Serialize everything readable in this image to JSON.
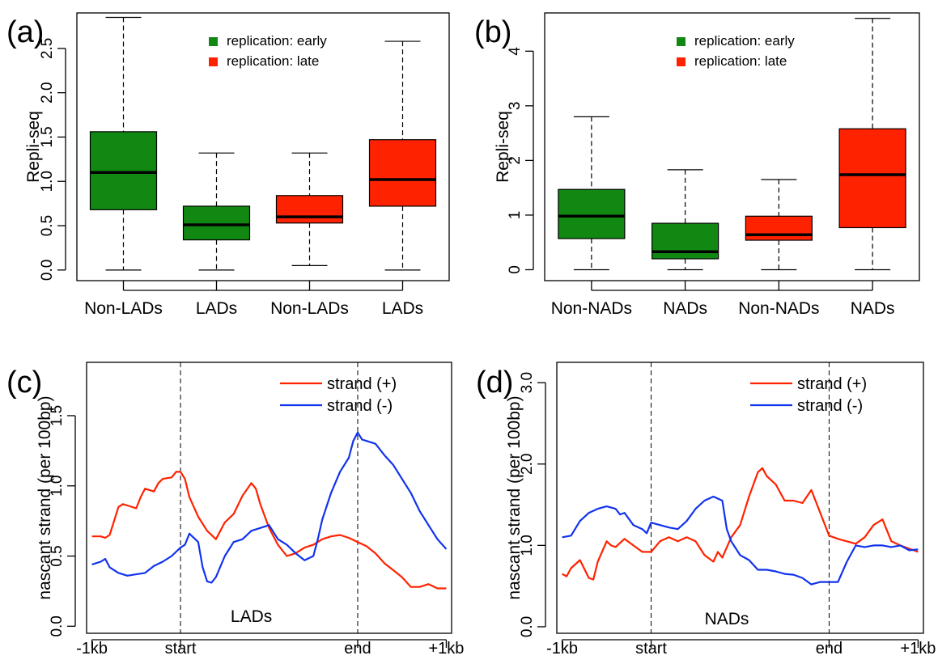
{
  "chart_data": [
    {
      "panel_label": "(a)",
      "type": "box",
      "ylabel": "Repli-seq",
      "ylim": [
        -0.12,
        2.9
      ],
      "yticks": [
        "0.0",
        "0.5",
        "1.0",
        "1.5",
        "2.0",
        "2.5"
      ],
      "ytick_values": [
        0,
        0.5,
        1.0,
        1.5,
        2.0,
        2.5
      ],
      "categories": [
        "Non-LADs",
        "LADs",
        "Non-LADs",
        "LADs"
      ],
      "legend": [
        {
          "label": "replication: early",
          "color": "#118811"
        },
        {
          "label": "replication: late",
          "color": "#ff2200"
        }
      ],
      "boxes": [
        {
          "min": 0.0,
          "q1": 0.68,
          "median": 1.1,
          "q3": 1.56,
          "max": 2.85,
          "color": "#118811"
        },
        {
          "min": 0.0,
          "q1": 0.34,
          "median": 0.51,
          "q3": 0.72,
          "max": 1.32,
          "color": "#118811"
        },
        {
          "min": 0.05,
          "q1": 0.53,
          "median": 0.6,
          "q3": 0.84,
          "max": 1.32,
          "color": "#ff2200"
        },
        {
          "min": 0.0,
          "q1": 0.72,
          "median": 1.02,
          "q3": 1.47,
          "max": 2.58,
          "color": "#ff2200"
        }
      ]
    },
    {
      "panel_label": "(b)",
      "type": "box",
      "ylabel": "Repli-seq",
      "ylim": [
        -0.2,
        4.7
      ],
      "yticks": [
        "0",
        "1",
        "2",
        "3",
        "4"
      ],
      "ytick_values": [
        0,
        1,
        2,
        3,
        4
      ],
      "categories": [
        "Non-NADs",
        "NADs",
        "Non-NADs",
        "NADs"
      ],
      "legend": [
        {
          "label": "replication: early",
          "color": "#118811"
        },
        {
          "label": "replication: late",
          "color": "#ff2200"
        }
      ],
      "boxes": [
        {
          "min": 0.0,
          "q1": 0.57,
          "median": 0.98,
          "q3": 1.47,
          "max": 2.8,
          "color": "#118811"
        },
        {
          "min": 0.0,
          "q1": 0.2,
          "median": 0.33,
          "q3": 0.85,
          "max": 1.83,
          "color": "#118811"
        },
        {
          "min": 0.0,
          "q1": 0.54,
          "median": 0.64,
          "q3": 0.98,
          "max": 1.65,
          "color": "#ff2200"
        },
        {
          "min": 0.0,
          "q1": 0.77,
          "median": 1.74,
          "q3": 2.58,
          "max": 4.6,
          "color": "#ff2200"
        }
      ]
    },
    {
      "panel_label": "(c)",
      "type": "line",
      "ylabel": "nascant strand (per 100bp)",
      "ylim": [
        -0.05,
        1.88
      ],
      "yticks": [
        "0.0",
        "0.5",
        "1.0",
        "1.5"
      ],
      "ytick_values": [
        0,
        0.5,
        1.0,
        1.5
      ],
      "xlim": [
        -0.06,
        4.06
      ],
      "xticks": [
        "-1kb",
        "start",
        "end",
        "+1kb"
      ],
      "xtick_values": [
        0,
        1,
        3,
        4
      ],
      "vlines": [
        1,
        3
      ],
      "annotation": "LADs",
      "annotation_x": 1.8,
      "annotation_y": 0.03,
      "series": [
        {
          "name": "strand (+)",
          "color": "#ff2200",
          "x": [
            0,
            0.1,
            0.15,
            0.2,
            0.3,
            0.35,
            0.4,
            0.5,
            0.55,
            0.6,
            0.7,
            0.75,
            0.8,
            0.9,
            0.95,
            1.0,
            1.05,
            1.1,
            1.2,
            1.3,
            1.4,
            1.5,
            1.6,
            1.7,
            1.8,
            1.85,
            1.9,
            2.0,
            2.1,
            2.2,
            2.3,
            2.4,
            2.5,
            2.6,
            2.7,
            2.8,
            2.9,
            3.0,
            3.1,
            3.2,
            3.3,
            3.4,
            3.5,
            3.6,
            3.7,
            3.8,
            3.9,
            4.0
          ],
          "y": [
            0.64,
            0.64,
            0.63,
            0.65,
            0.85,
            0.87,
            0.86,
            0.84,
            0.92,
            0.98,
            0.96,
            1.02,
            1.05,
            1.06,
            1.1,
            1.1,
            1.05,
            0.92,
            0.78,
            0.68,
            0.62,
            0.74,
            0.8,
            0.93,
            1.02,
            0.98,
            0.87,
            0.7,
            0.58,
            0.5,
            0.52,
            0.56,
            0.58,
            0.62,
            0.64,
            0.65,
            0.63,
            0.6,
            0.57,
            0.52,
            0.45,
            0.4,
            0.35,
            0.28,
            0.28,
            0.3,
            0.27,
            0.27
          ]
        },
        {
          "name": "strand (-)",
          "color": "#1133ee",
          "x": [
            0,
            0.1,
            0.15,
            0.2,
            0.3,
            0.4,
            0.5,
            0.6,
            0.7,
            0.8,
            0.9,
            1.0,
            1.05,
            1.1,
            1.2,
            1.25,
            1.3,
            1.35,
            1.4,
            1.5,
            1.6,
            1.7,
            1.8,
            1.9,
            2.0,
            2.1,
            2.2,
            2.3,
            2.4,
            2.5,
            2.55,
            2.6,
            2.7,
            2.8,
            2.9,
            2.95,
            3.0,
            3.05,
            3.1,
            3.2,
            3.3,
            3.4,
            3.5,
            3.6,
            3.7,
            3.8,
            3.9,
            4.0
          ],
          "y": [
            0.44,
            0.46,
            0.48,
            0.42,
            0.38,
            0.36,
            0.37,
            0.38,
            0.43,
            0.46,
            0.5,
            0.56,
            0.58,
            0.66,
            0.6,
            0.42,
            0.32,
            0.31,
            0.35,
            0.5,
            0.6,
            0.62,
            0.68,
            0.7,
            0.72,
            0.62,
            0.58,
            0.52,
            0.47,
            0.5,
            0.62,
            0.76,
            0.95,
            1.1,
            1.2,
            1.32,
            1.38,
            1.33,
            1.32,
            1.3,
            1.22,
            1.15,
            1.05,
            0.95,
            0.82,
            0.72,
            0.62,
            0.55
          ]
        }
      ]
    },
    {
      "panel_label": "(d)",
      "type": "line",
      "ylabel": "nascant strand (per 100bp)",
      "ylim": [
        -0.08,
        3.25
      ],
      "yticks": [
        "0.0",
        "1.0",
        "2.0",
        "3.0"
      ],
      "ytick_values": [
        0,
        1,
        2,
        3
      ],
      "xlim": [
        -0.06,
        4.06
      ],
      "xticks": [
        "-1kb",
        "start",
        "end",
        "+1kb"
      ],
      "xtick_values": [
        0,
        1,
        3,
        4
      ],
      "vlines": [
        1,
        3
      ],
      "annotation": "NADs",
      "annotation_x": 1.85,
      "annotation_y": 0.03,
      "series": [
        {
          "name": "strand (+)",
          "color": "#ff2200",
          "x": [
            0,
            0.05,
            0.1,
            0.2,
            0.3,
            0.35,
            0.4,
            0.5,
            0.55,
            0.6,
            0.7,
            0.8,
            0.9,
            1.0,
            1.1,
            1.2,
            1.3,
            1.4,
            1.5,
            1.6,
            1.7,
            1.75,
            1.8,
            1.9,
            2.0,
            2.1,
            2.2,
            2.25,
            2.3,
            2.4,
            2.5,
            2.6,
            2.7,
            2.8,
            2.9,
            3.0,
            3.1,
            3.2,
            3.3,
            3.4,
            3.5,
            3.6,
            3.7,
            3.8,
            3.9,
            4.0
          ],
          "y": [
            0.65,
            0.62,
            0.72,
            0.82,
            0.6,
            0.58,
            0.8,
            1.05,
            1.0,
            0.98,
            1.08,
            1.0,
            0.92,
            0.92,
            1.05,
            1.1,
            1.05,
            1.1,
            1.05,
            0.88,
            0.8,
            0.92,
            0.85,
            1.1,
            1.25,
            1.6,
            1.9,
            1.95,
            1.85,
            1.75,
            1.55,
            1.55,
            1.52,
            1.68,
            1.4,
            1.12,
            1.08,
            1.05,
            1.02,
            1.1,
            1.25,
            1.32,
            1.05,
            1.0,
            0.96,
            0.92
          ]
        },
        {
          "name": "strand (-)",
          "color": "#1133ee",
          "x": [
            0,
            0.1,
            0.2,
            0.3,
            0.4,
            0.5,
            0.6,
            0.65,
            0.7,
            0.8,
            0.9,
            0.95,
            1.0,
            1.1,
            1.2,
            1.3,
            1.4,
            1.5,
            1.6,
            1.7,
            1.8,
            1.85,
            1.9,
            2.0,
            2.1,
            2.2,
            2.3,
            2.4,
            2.5,
            2.6,
            2.7,
            2.8,
            2.9,
            3.0,
            3.1,
            3.2,
            3.3,
            3.4,
            3.5,
            3.6,
            3.7,
            3.8,
            3.9,
            4.0
          ],
          "y": [
            1.1,
            1.12,
            1.3,
            1.4,
            1.45,
            1.48,
            1.45,
            1.38,
            1.4,
            1.25,
            1.2,
            1.15,
            1.28,
            1.25,
            1.22,
            1.2,
            1.3,
            1.45,
            1.55,
            1.6,
            1.55,
            1.2,
            1.05,
            0.88,
            0.82,
            0.7,
            0.7,
            0.68,
            0.65,
            0.64,
            0.6,
            0.52,
            0.55,
            0.55,
            0.55,
            0.8,
            1.0,
            0.98,
            1.0,
            1.0,
            0.98,
            1.0,
            0.94,
            0.95
          ]
        }
      ]
    }
  ]
}
